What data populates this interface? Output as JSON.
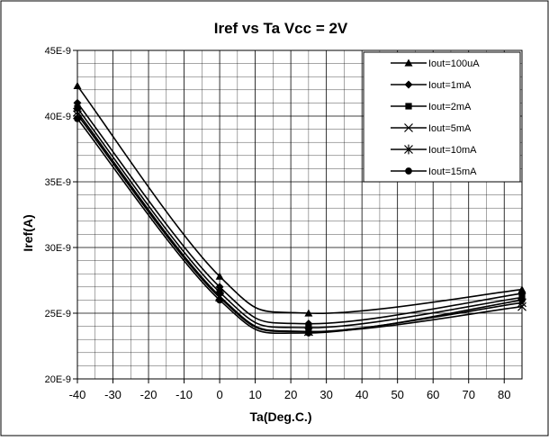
{
  "chart_data": {
    "type": "line",
    "title": "Iref vs Ta Vcc = 2V",
    "xlabel": "Ta(Deg.C.)",
    "ylabel": "Iref(A)",
    "xlim": [
      -40,
      85
    ],
    "ylim": [
      2e-08,
      4.5e-08
    ],
    "x_ticks": [
      -40,
      -30,
      -20,
      -10,
      0,
      10,
      20,
      30,
      40,
      50,
      60,
      70,
      80
    ],
    "x_tick_labels": [
      "-40",
      "-30",
      "-20",
      "-10",
      "0",
      "10",
      "20",
      "30",
      "40",
      "50",
      "60",
      "70",
      "80"
    ],
    "y_ticks": [
      2e-08,
      2.5e-08,
      3e-08,
      3.5e-08,
      4e-08,
      4.5e-08
    ],
    "y_tick_labels": [
      "20E-9",
      "25E-9",
      "30E-9",
      "35E-9",
      "40E-9",
      "45E-9"
    ],
    "x_minor_step": 5,
    "y_minor_step": 1e-09,
    "grid": true,
    "legend_position": "top-right",
    "x": [
      -40,
      0,
      25,
      85
    ],
    "series": [
      {
        "name": "Iout=100uA",
        "marker": "triangle",
        "values": [
          4.23e-08,
          2.78e-08,
          2.5e-08,
          2.68e-08
        ]
      },
      {
        "name": "Iout=1mA",
        "marker": "diamond",
        "values": [
          4.1e-08,
          2.7e-08,
          2.42e-08,
          2.65e-08
        ]
      },
      {
        "name": "Iout=2mA",
        "marker": "square",
        "values": [
          4.06e-08,
          2.66e-08,
          2.39e-08,
          2.62e-08
        ]
      },
      {
        "name": "Iout=5mA",
        "marker": "x",
        "values": [
          4.03e-08,
          2.63e-08,
          2.36e-08,
          2.55e-08
        ]
      },
      {
        "name": "Iout=10mA",
        "marker": "star",
        "values": [
          4.01e-08,
          2.62e-08,
          2.36e-08,
          2.58e-08
        ]
      },
      {
        "name": "Iout=15mA",
        "marker": "circle",
        "values": [
          3.98e-08,
          2.6e-08,
          2.35e-08,
          2.6e-08
        ]
      }
    ]
  }
}
